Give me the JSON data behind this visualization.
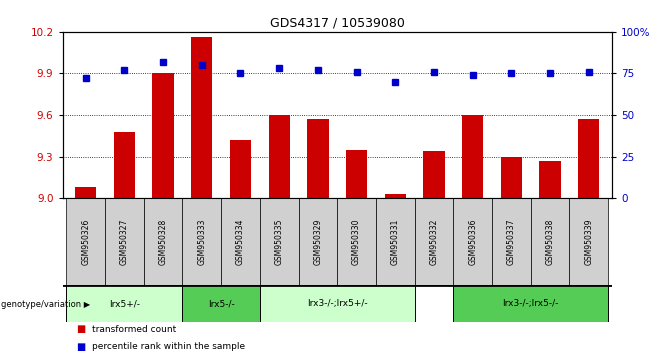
{
  "title": "GDS4317 / 10539080",
  "samples": [
    "GSM950326",
    "GSM950327",
    "GSM950328",
    "GSM950333",
    "GSM950334",
    "GSM950335",
    "GSM950329",
    "GSM950330",
    "GSM950331",
    "GSM950332",
    "GSM950336",
    "GSM950337",
    "GSM950338",
    "GSM950339"
  ],
  "red_values": [
    9.08,
    9.48,
    9.9,
    10.16,
    9.42,
    9.6,
    9.57,
    9.35,
    9.03,
    9.34,
    9.6,
    9.3,
    9.27,
    9.57
  ],
  "blue_values": [
    72,
    77,
    82,
    80,
    75,
    78,
    77,
    76,
    70,
    76,
    74,
    75,
    75,
    76
  ],
  "ylim_left": [
    9.0,
    10.2
  ],
  "ylim_right": [
    0,
    100
  ],
  "yticks_left": [
    9.0,
    9.3,
    9.6,
    9.9,
    10.2
  ],
  "yticks_right": [
    0,
    25,
    50,
    75,
    100
  ],
  "ytick_labels_right": [
    "0",
    "25",
    "50",
    "75",
    "100%"
  ],
  "bar_color": "#cc0000",
  "dot_color": "#0000cc",
  "grid_color": "#000000",
  "genotype_groups": [
    {
      "label": "lrx5+/-",
      "start": 0,
      "end": 2,
      "color": "#ccffcc"
    },
    {
      "label": "lrx5-/-",
      "start": 3,
      "end": 5,
      "color": "#66dd66"
    },
    {
      "label": "lrx3-/-;lrx5+/-",
      "start": 5,
      "end": 9,
      "color": "#ccffcc"
    },
    {
      "label": "lrx3-/-;lrx5-/-",
      "start": 10,
      "end": 13,
      "color": "#66dd66"
    }
  ],
  "legend_items": [
    {
      "label": "transformed count",
      "color": "#cc0000"
    },
    {
      "label": "percentile rank within the sample",
      "color": "#0000cc"
    }
  ],
  "background_color": "#ffffff",
  "genotype_label": "genotype/variation",
  "bar_width": 0.55,
  "base_value": 9.0
}
